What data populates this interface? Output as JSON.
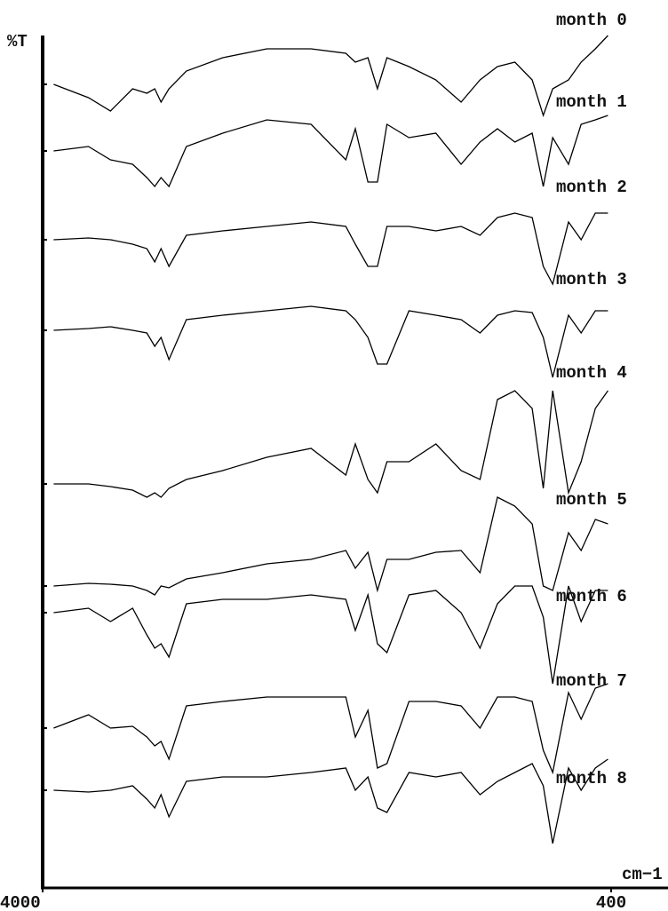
{
  "chart_data": {
    "type": "line",
    "y_label": "%T",
    "x_label": "cm−1",
    "xlim": [
      4000,
      400
    ],
    "xticks": [
      4000,
      400
    ],
    "ylim": [
      0,
      960
    ],
    "x": [
      3930,
      3710,
      3570,
      3430,
      3340,
      3290,
      3250,
      3200,
      3090,
      2860,
      2580,
      2300,
      2080,
      2020,
      1940,
      1880,
      1820,
      1680,
      1510,
      1350,
      1230,
      1120,
      1010,
      900,
      830,
      770,
      670,
      590,
      500,
      420
    ],
    "series": [
      {
        "name": "month 0",
        "color": "#000000",
        "values": [
          905,
          890,
          875,
          900,
          895,
          900,
          885,
          900,
          920,
          935,
          945,
          945,
          940,
          930,
          935,
          900,
          935,
          925,
          910,
          885,
          910,
          925,
          930,
          910,
          870,
          900,
          910,
          930,
          945,
          960
        ]
      },
      {
        "name": "month 1",
        "color": "#000000",
        "values": [
          830,
          835,
          820,
          815,
          800,
          790,
          800,
          790,
          835,
          850,
          865,
          860,
          820,
          855,
          795,
          795,
          860,
          845,
          850,
          815,
          840,
          855,
          840,
          850,
          790,
          845,
          815,
          860,
          865,
          870
        ]
      },
      {
        "name": "month 2",
        "color": "#000000",
        "values": [
          730,
          732,
          730,
          725,
          720,
          705,
          720,
          700,
          735,
          740,
          745,
          750,
          745,
          725,
          700,
          700,
          745,
          745,
          740,
          745,
          735,
          755,
          760,
          755,
          700,
          680,
          750,
          730,
          760,
          760
        ]
      },
      {
        "name": "month 3",
        "color": "#000000",
        "values": [
          628,
          630,
          632,
          628,
          625,
          610,
          620,
          595,
          640,
          645,
          650,
          655,
          650,
          640,
          620,
          590,
          590,
          650,
          645,
          640,
          625,
          645,
          650,
          648,
          620,
          575,
          645,
          625,
          650,
          650
        ]
      },
      {
        "name": "month 4",
        "color": "#000000",
        "values": [
          455,
          455,
          452,
          448,
          440,
          445,
          440,
          450,
          460,
          470,
          485,
          495,
          465,
          500,
          460,
          445,
          480,
          480,
          500,
          470,
          460,
          550,
          560,
          540,
          450,
          560,
          445,
          480,
          540,
          560
        ]
      },
      {
        "name": "month 5",
        "color": "#000000",
        "values": [
          340,
          343,
          342,
          340,
          335,
          330,
          340,
          338,
          348,
          355,
          365,
          370,
          380,
          360,
          378,
          335,
          370,
          370,
          378,
          380,
          355,
          440,
          430,
          410,
          340,
          335,
          400,
          380,
          415,
          410
        ]
      },
      {
        "name": "month 6",
        "color": "#000000",
        "values": [
          310,
          315,
          300,
          315,
          285,
          270,
          275,
          260,
          320,
          325,
          325,
          330,
          325,
          290,
          330,
          275,
          265,
          330,
          335,
          310,
          270,
          320,
          340,
          340,
          305,
          230,
          340,
          300,
          335,
          335
        ]
      },
      {
        "name": "month 7",
        "color": "#000000",
        "values": [
          180,
          195,
          180,
          182,
          170,
          160,
          165,
          145,
          205,
          210,
          215,
          215,
          215,
          170,
          200,
          135,
          140,
          210,
          210,
          205,
          180,
          215,
          215,
          210,
          155,
          130,
          220,
          190,
          225,
          230
        ]
      },
      {
        "name": "month 8",
        "color": "#000000",
        "values": [
          110,
          108,
          110,
          115,
          100,
          90,
          105,
          80,
          120,
          125,
          125,
          130,
          135,
          110,
          125,
          90,
          85,
          130,
          125,
          130,
          105,
          120,
          130,
          140,
          115,
          50,
          135,
          110,
          135,
          145
        ]
      }
    ]
  }
}
